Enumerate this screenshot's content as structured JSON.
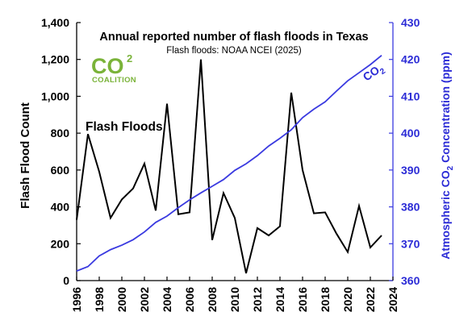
{
  "chart_data": {
    "type": "line",
    "title": "Annual reported number of flash floods in Texas",
    "subtitle": "Flash floods: NOAA NCEI (2025)",
    "ylabel": "Flash Flood Count",
    "ylabel2_parts": [
      "Atmospheric CO",
      "2",
      " Concentration (ppm)"
    ],
    "xlim": [
      1996,
      2024
    ],
    "ylim": [
      0,
      1400
    ],
    "y2lim": [
      360,
      430
    ],
    "x_ticks": [
      1996,
      1998,
      2000,
      2002,
      2004,
      2006,
      2008,
      2010,
      2012,
      2014,
      2016,
      2018,
      2020,
      2022,
      2024
    ],
    "y_ticks": [
      "0",
      "200",
      "400",
      "600",
      "800",
      "1,000",
      "1,200",
      "1,400"
    ],
    "y2_ticks": [
      "360",
      "370",
      "380",
      "390",
      "400",
      "410",
      "420",
      "430"
    ],
    "grid": false,
    "series": [
      {
        "name": "Flash Floods",
        "axis": "left",
        "color": "#000000",
        "x": [
          1996,
          1997,
          1998,
          1999,
          2000,
          2001,
          2002,
          2003,
          2004,
          2005,
          2006,
          2007,
          2008,
          2009,
          2010,
          2011,
          2012,
          2013,
          2014,
          2015,
          2016,
          2017,
          2018,
          2019,
          2020,
          2021,
          2022,
          2023
        ],
        "values": [
          330,
          795,
          590,
          340,
          440,
          500,
          635,
          380,
          960,
          360,
          370,
          1200,
          220,
          475,
          340,
          40,
          285,
          245,
          295,
          1020,
          600,
          365,
          370,
          255,
          155,
          405,
          180,
          245
        ]
      },
      {
        "name": "CO2",
        "axis": "right",
        "color": "#3a3ae0",
        "x": [
          1996,
          1997,
          1998,
          1999,
          2000,
          2001,
          2002,
          2003,
          2004,
          2005,
          2006,
          2007,
          2008,
          2009,
          2010,
          2011,
          2012,
          2013,
          2014,
          2015,
          2016,
          2017,
          2018,
          2019,
          2020,
          2021,
          2022,
          2023
        ],
        "values": [
          362.6,
          363.8,
          366.7,
          368.4,
          369.6,
          371.1,
          373.2,
          375.8,
          377.5,
          379.8,
          381.9,
          383.8,
          385.6,
          387.4,
          389.9,
          391.7,
          393.9,
          396.5,
          398.6,
          400.9,
          404.2,
          406.5,
          408.5,
          411.4,
          414.2,
          416.4,
          418.6,
          421.1
        ]
      }
    ],
    "annotations": {
      "flood_label": "Flash Floods",
      "co2_label": [
        "CO",
        "2"
      ]
    }
  },
  "logo": {
    "text_main": "CO",
    "text_sub": "2",
    "text_bottom": "COALITION",
    "color": "#7ab339"
  }
}
